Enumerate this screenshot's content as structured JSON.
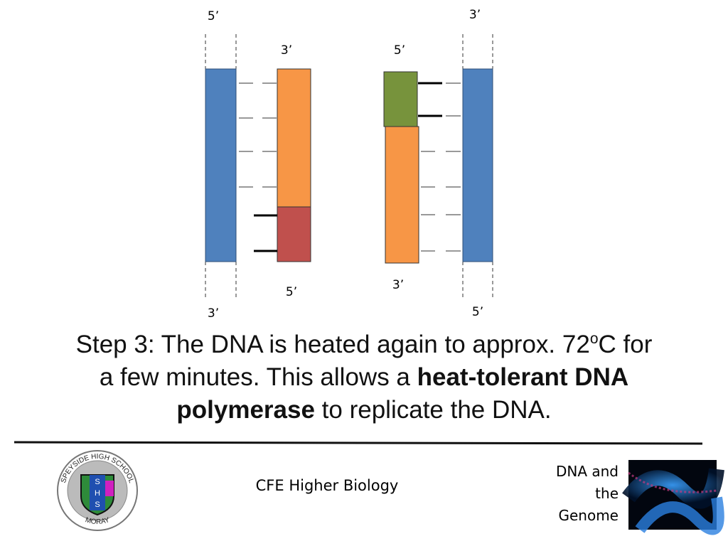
{
  "diagram": {
    "left": {
      "outer_top": "5’",
      "outer_bottom": "3’",
      "inner_top": "3’",
      "inner_bottom": "5’"
    },
    "right": {
      "outer_top": "3’",
      "outer_bottom": "5’",
      "inner_top": "5’",
      "inner_bottom": "3’"
    }
  },
  "caption": [
    "Step 3: The DNA is heated again to approx. 72",
    "o",
    "C for",
    "a few minutes. This allows a ",
    "heat-tolerant DNA",
    "polymerase",
    " to replicate the DNA."
  ],
  "footer": {
    "course": "CFE Higher Biology",
    "unit": [
      "DNA and",
      "the",
      "Genome"
    ],
    "logo": {
      "ring_top": "SPEYSIDE HIGH SCHOOL",
      "ring_bottom": "MORAY",
      "letters": [
        "S",
        "H",
        "S"
      ]
    }
  }
}
